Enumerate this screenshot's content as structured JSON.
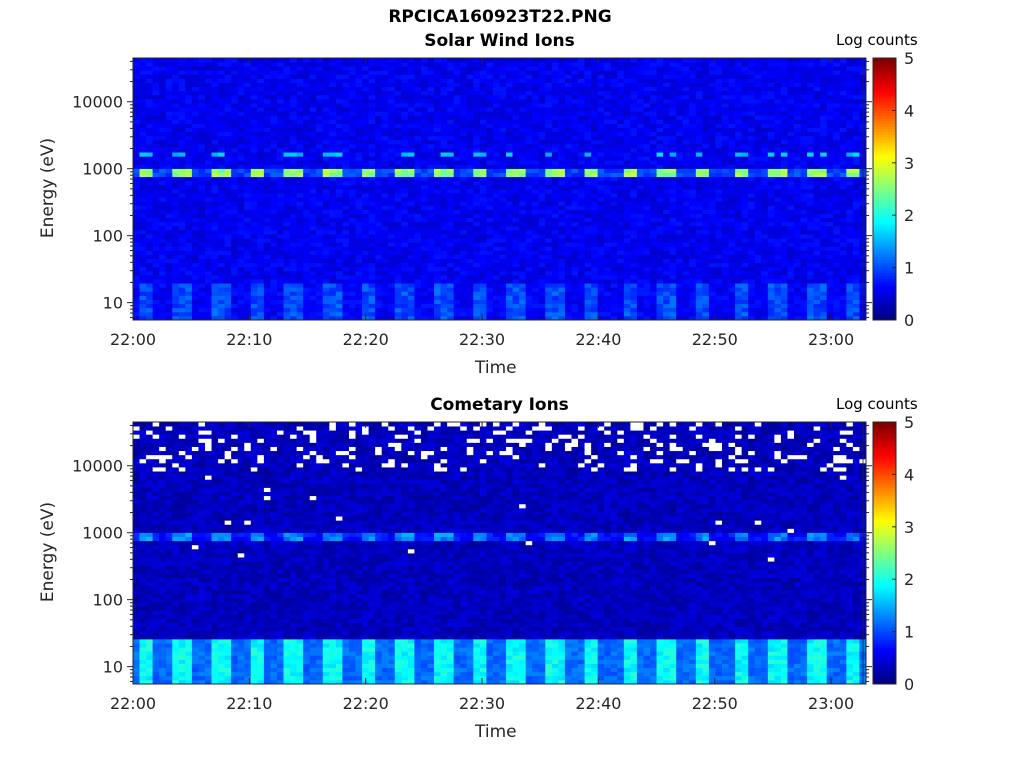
{
  "figure": {
    "title": "RPCICA160923T22.PNG"
  },
  "colors": {
    "colormap": "jet",
    "missing_data": "#ffffff",
    "axis": "#262626"
  },
  "chart_data": [
    {
      "type": "heatmap",
      "title": "Solar Wind Ions",
      "xlabel": "Time",
      "ylabel": "Energy (eV)",
      "yscale": "log",
      "ylim": [
        5.5,
        45000
      ],
      "yticks": [
        10,
        100,
        1000,
        10000
      ],
      "ytick_labels": [
        "10",
        "100",
        "1000",
        "10000"
      ],
      "xlim": [
        "22:00",
        "23:03"
      ],
      "xtick_labels": [
        "22:00",
        "22:10",
        "22:20",
        "22:30",
        "22:40",
        "22:50",
        "23:00"
      ],
      "colorbar_label": "Log counts",
      "colorbar_range": [
        0,
        5
      ],
      "colorbar_ticks": [
        "0",
        "1",
        "2",
        "3",
        "4",
        "5"
      ],
      "scan_period_min": 3.2,
      "features": {
        "background_log_counts": 0.55,
        "peak_energy_eV": 850,
        "peak_log_counts": 2.6,
        "secondary_peak_energy_eV": 1700,
        "secondary_peak_log_counts": 1.6,
        "low_energy_band_eV": [
          5.5,
          20
        ],
        "low_energy_log_counts": 1.0
      },
      "grid": false
    },
    {
      "type": "heatmap",
      "title": "Cometary Ions",
      "xlabel": "Time",
      "ylabel": "Energy (eV)",
      "yscale": "log",
      "ylim": [
        5.5,
        45000
      ],
      "yticks": [
        10,
        100,
        1000,
        10000
      ],
      "ytick_labels": [
        "10",
        "100",
        "1000",
        "10000"
      ],
      "xlim": [
        "22:00",
        "23:03"
      ],
      "xtick_labels": [
        "22:00",
        "22:10",
        "22:20",
        "22:30",
        "22:40",
        "22:50",
        "23:00"
      ],
      "colorbar_label": "Log counts",
      "colorbar_range": [
        0,
        5
      ],
      "colorbar_ticks": [
        "0",
        "1",
        "2",
        "3",
        "4",
        "5"
      ],
      "scan_period_min": 3.2,
      "features": {
        "background_log_counts": 0.3,
        "peak_energy_eV": 850,
        "peak_log_counts": 1.3,
        "low_energy_band_eV": [
          5.5,
          25
        ],
        "low_energy_log_counts": 1.9,
        "high_energy_empty_bins_above_eV": 8000
      },
      "grid": false
    }
  ]
}
